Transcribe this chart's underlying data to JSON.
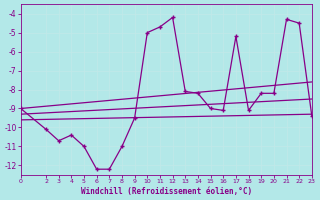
{
  "background_color": "#b3e8e8",
  "grid_color": "#d0f0f0",
  "line_color": "#880088",
  "xlabel": "Windchill (Refroidissement éolien,°C)",
  "xlabel_color": "#880088",
  "tick_color": "#880088",
  "ylim": [
    -12.5,
    -3.5
  ],
  "xlim": [
    0,
    23
  ],
  "yticks": [
    -12,
    -11,
    -10,
    -9,
    -8,
    -7,
    -6,
    -5,
    -4
  ],
  "xticks": [
    0,
    2,
    3,
    4,
    5,
    6,
    7,
    8,
    9,
    10,
    11,
    12,
    13,
    14,
    15,
    16,
    17,
    18,
    19,
    20,
    21,
    22,
    23
  ],
  "series1_x": [
    0,
    2,
    3,
    4,
    5,
    6,
    7,
    8,
    9,
    10,
    11,
    12,
    13,
    14,
    15,
    16,
    17,
    18,
    19,
    20,
    21,
    22,
    23
  ],
  "series1_y": [
    -9.0,
    -10.1,
    -10.7,
    -10.4,
    -11.0,
    -12.2,
    -12.2,
    -11.0,
    -9.5,
    -5.0,
    -4.7,
    -4.2,
    -8.1,
    -8.2,
    -9.0,
    -9.1,
    -5.2,
    -9.1,
    -8.2,
    -8.2,
    -4.3,
    -4.5,
    -9.4
  ],
  "line1_x": [
    0,
    23
  ],
  "line1_y": [
    -9.0,
    -7.6
  ],
  "line2_x": [
    0,
    23
  ],
  "line2_y": [
    -9.3,
    -8.5
  ],
  "line3_x": [
    0,
    23
  ],
  "line3_y": [
    -9.6,
    -9.3
  ]
}
